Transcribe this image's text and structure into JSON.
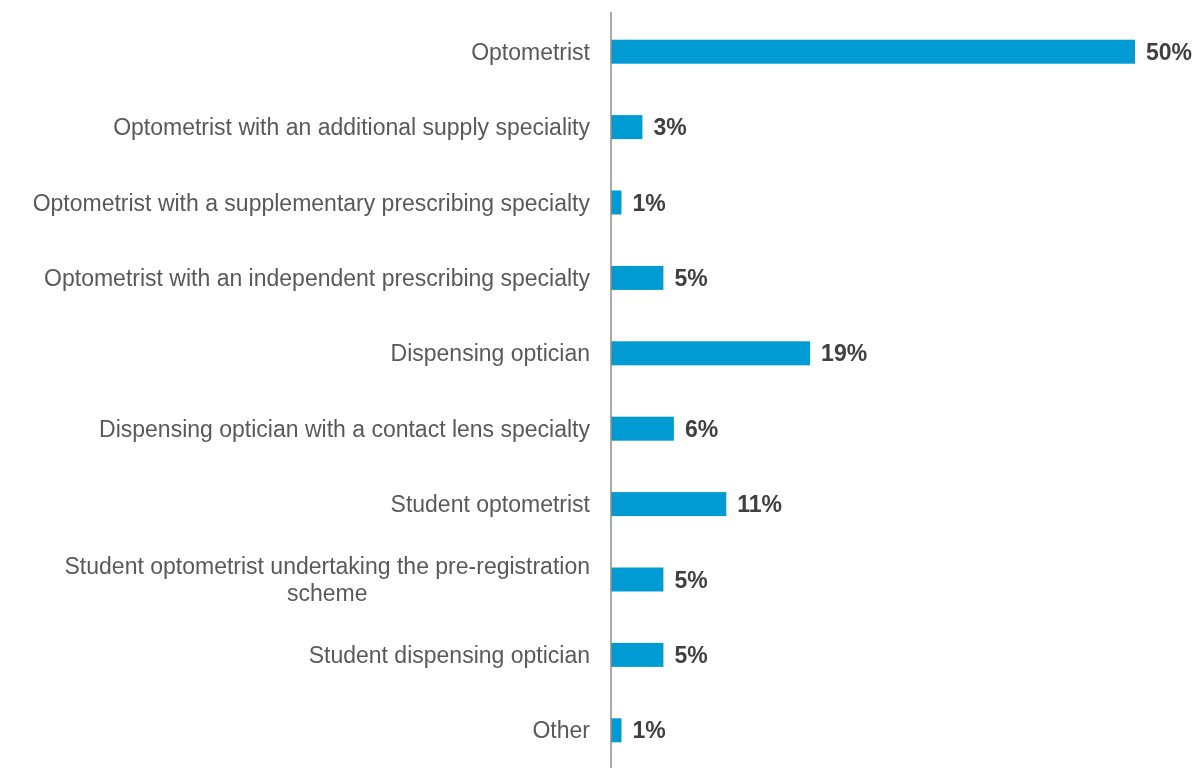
{
  "chart_data": {
    "type": "bar",
    "orientation": "horizontal",
    "categories": [
      "Optometrist",
      "Optometrist with an additional supply speciality",
      "Optometrist with a supplementary prescribing specialty",
      "Optometrist with an independent prescribing specialty",
      "Dispensing optician",
      "Dispensing optician with a contact lens specialty",
      "Student optometrist",
      "Student optometrist undertaking the pre-registration scheme",
      "Student dispensing optician",
      "Other"
    ],
    "values": [
      50,
      3,
      1,
      5,
      19,
      6,
      11,
      5,
      5,
      1
    ],
    "value_labels": [
      "50%",
      "3%",
      "1%",
      "5%",
      "19%",
      "6%",
      "11%",
      "5%",
      "5%",
      "1%"
    ],
    "color": "#009bd2"
  }
}
